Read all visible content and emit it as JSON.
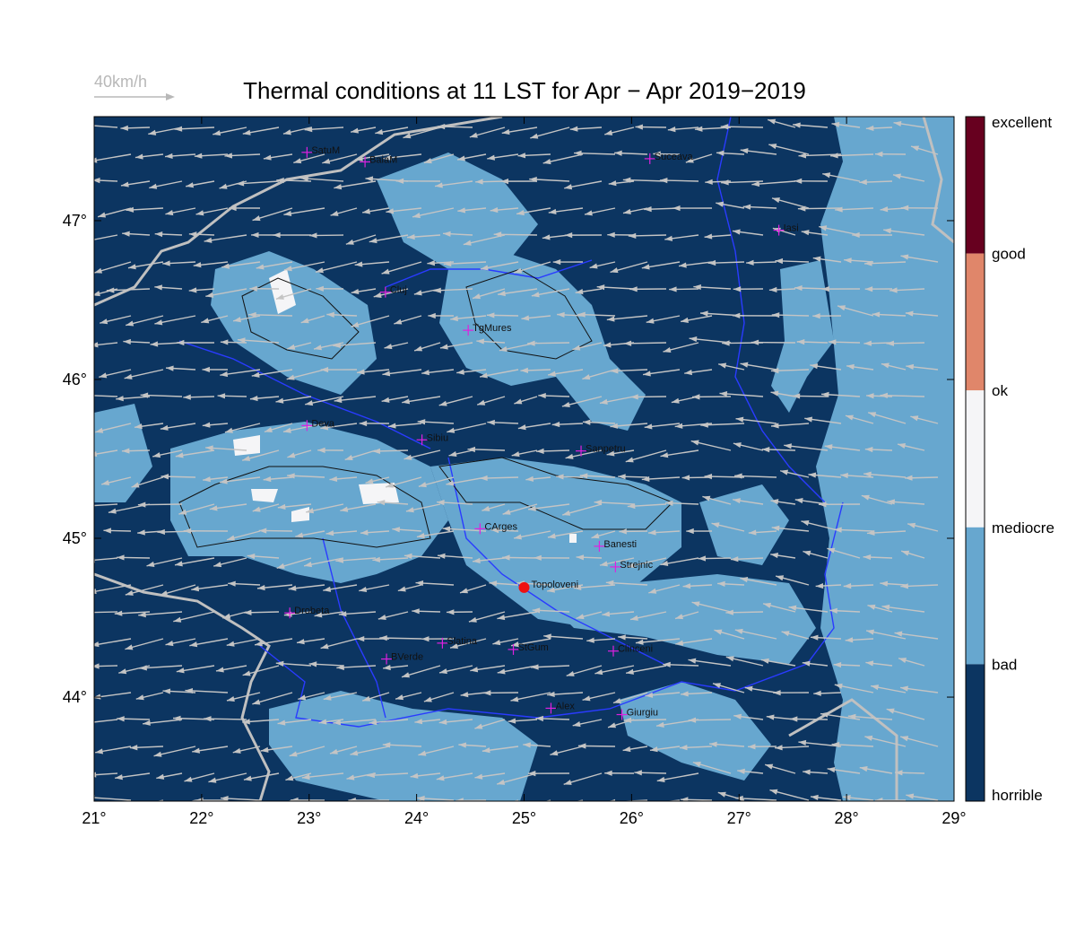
{
  "title": "Thermal conditions at 11 LST for Apr − Apr  2019−2019",
  "vector_legend": "40km/h",
  "xlim": [
    21,
    29
  ],
  "ylim": [
    43.345,
    47.655
  ],
  "x_ticks": [
    {
      "value": 21,
      "label": "21°"
    },
    {
      "value": 22,
      "label": "22°"
    },
    {
      "value": 23,
      "label": "23°"
    },
    {
      "value": 24,
      "label": "24°"
    },
    {
      "value": 25,
      "label": "25°"
    },
    {
      "value": 26,
      "label": "26°"
    },
    {
      "value": 27,
      "label": "27°"
    },
    {
      "value": 28,
      "label": "28°"
    },
    {
      "value": 29,
      "label": "29°"
    }
  ],
  "y_ticks": [
    {
      "value": 44,
      "label": "44°"
    },
    {
      "value": 45,
      "label": "45°"
    },
    {
      "value": 46,
      "label": "46°"
    },
    {
      "value": 47,
      "label": "47°"
    }
  ],
  "colorbar": {
    "labels": [
      "excellent",
      "good",
      "ok",
      "mediocre",
      "bad",
      "horrible"
    ],
    "colors": [
      "#67001f",
      "#e0866a",
      "#f5f5f7",
      "#67a7cf",
      "#0c3561"
    ]
  },
  "cities": [
    {
      "name": "SatuM",
      "lon": 22.98,
      "lat": 47.43
    },
    {
      "name": "BaiaM",
      "lon": 23.52,
      "lat": 47.37
    },
    {
      "name": "Suceava",
      "lon": 26.17,
      "lat": 47.39
    },
    {
      "name": "Iasi",
      "lon": 27.37,
      "lat": 46.94
    },
    {
      "name": "Cluj",
      "lon": 23.71,
      "lat": 46.55
    },
    {
      "name": "TgMures",
      "lon": 24.48,
      "lat": 46.31
    },
    {
      "name": "Deva",
      "lon": 22.98,
      "lat": 45.71
    },
    {
      "name": "Sibiu",
      "lon": 24.05,
      "lat": 45.62
    },
    {
      "name": "Sanpetru",
      "lon": 25.53,
      "lat": 45.55
    },
    {
      "name": "CArges",
      "lon": 24.59,
      "lat": 45.06
    },
    {
      "name": "Banesti",
      "lon": 25.7,
      "lat": 44.95
    },
    {
      "name": "Strejnic",
      "lon": 25.85,
      "lat": 44.82
    },
    {
      "name": "Drobeta",
      "lon": 22.82,
      "lat": 44.53
    },
    {
      "name": "Slatina",
      "lon": 24.24,
      "lat": 44.34
    },
    {
      "name": "StGum",
      "lon": 24.9,
      "lat": 44.3
    },
    {
      "name": "BVerde",
      "lon": 23.72,
      "lat": 44.24
    },
    {
      "name": "Clinceni",
      "lon": 25.83,
      "lat": 44.29
    },
    {
      "name": "Alex",
      "lon": 25.25,
      "lat": 43.93
    },
    {
      "name": "Giurgiu",
      "lon": 25.91,
      "lat": 43.89
    }
  ],
  "marker": {
    "name": "Topoloveni",
    "lon": 25.0,
    "lat": 44.69
  }
}
